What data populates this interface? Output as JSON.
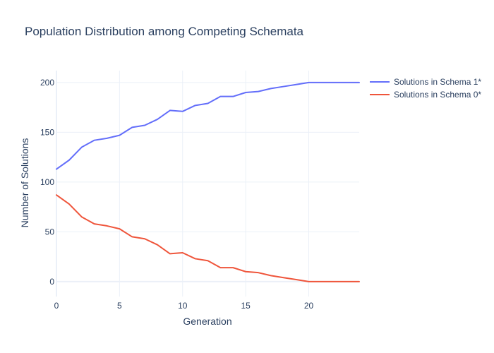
{
  "chart_data": {
    "type": "line",
    "title": "Population Distribution among Competing Schemata",
    "xlabel": "Generation",
    "ylabel": "Number of Solutions",
    "xlim": [
      0,
      24
    ],
    "ylim": [
      -15,
      212
    ],
    "xticks": [
      0,
      5,
      10,
      15,
      20
    ],
    "yticks": [
      0,
      50,
      100,
      150,
      200
    ],
    "grid": true,
    "legend_position": "top-right",
    "x": [
      0,
      1,
      2,
      3,
      4,
      5,
      6,
      7,
      8,
      9,
      10,
      11,
      12,
      13,
      14,
      15,
      16,
      17,
      18,
      19,
      20,
      21,
      22,
      23,
      24
    ],
    "series": [
      {
        "name": "Solutions in Schema 1*",
        "color": "#636efa",
        "values": [
          113,
          122,
          135,
          142,
          144,
          147,
          155,
          157,
          163,
          172,
          171,
          177,
          179,
          186,
          186,
          190,
          191,
          194,
          196,
          198,
          200,
          200,
          200,
          200,
          200
        ]
      },
      {
        "name": "Solutions in Schema 0*",
        "color": "#ef553b",
        "values": [
          87,
          78,
          65,
          58,
          56,
          53,
          45,
          43,
          37,
          28,
          29,
          23,
          21,
          14,
          14,
          10,
          9,
          6,
          4,
          2,
          0,
          0,
          0,
          0,
          0
        ]
      }
    ]
  }
}
